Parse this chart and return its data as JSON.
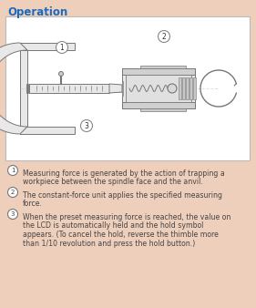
{
  "background_color": "#eecfbc",
  "title": "Operation",
  "title_color": "#1a6bbf",
  "title_fontsize": 8.5,
  "box_bg": "#ffffff",
  "box_border": "#bbbbbb",
  "gray1": "#999999",
  "gray2": "#777777",
  "gray3": "#bbbbbb",
  "gray4": "#cccccc",
  "gray5": "#e8e8e8",
  "gray6": "#d0d0d0",
  "annotations": [
    {
      "num": "1",
      "text": "Measuring force is generated by the action of trapping a\nworkpiece between the spindle face and the anvil."
    },
    {
      "num": "2",
      "text": "The constant-force unit applies the specified measuring\nforce."
    },
    {
      "num": "3",
      "text": "When the preset measuring force is reached, the value on\nthe LCD is automatically held and the hold symbol\nappears. (To cancel the hold, reverse the thimble more\nthan 1/10 revolution and press the hold button.)"
    }
  ],
  "fig_w": 2.81,
  "fig_h": 3.38,
  "dpi": 100
}
